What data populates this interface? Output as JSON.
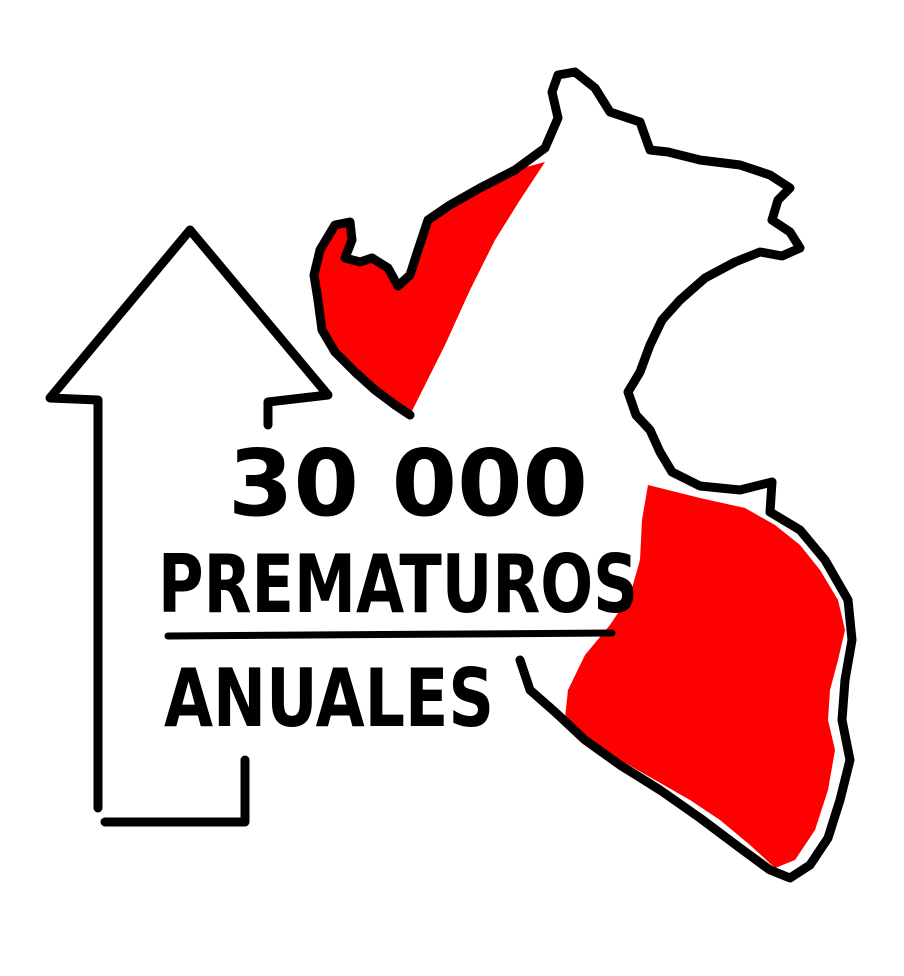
{
  "headline": {
    "number": "30 000",
    "line1": "PREMATUROS",
    "line2": "ANUALES"
  },
  "colors": {
    "background": "#ffffff",
    "ink": "#000000",
    "accent": "#ff0000"
  },
  "icons": {
    "arrow": "up-arrow-icon",
    "map": "peru-map-icon"
  }
}
